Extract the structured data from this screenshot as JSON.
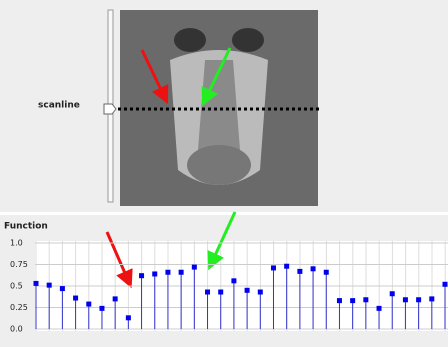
{
  "scanline_label": "scanline",
  "chart_data": {
    "type": "stem",
    "title": "Function",
    "color": "#0000ee",
    "stem_color": "#3333cc",
    "values": [
      0.53,
      0.51,
      0.47,
      0.36,
      0.29,
      0.24,
      0.35,
      0.13,
      0.62,
      0.64,
      0.66,
      0.66,
      0.72,
      0.43,
      0.43,
      0.56,
      0.45,
      0.43,
      0.71,
      0.73,
      0.67,
      0.7,
      0.66,
      0.33,
      0.33,
      0.34,
      0.24,
      0.41,
      0.34,
      0.34,
      0.35,
      0.52
    ],
    "ylim": [
      0,
      1
    ],
    "yticks": [
      {
        "value": 0,
        "label": "0.0"
      },
      0.25,
      0.5,
      0.75,
      {
        "value": 1,
        "label": "1.0"
      }
    ],
    "grid": true
  }
}
